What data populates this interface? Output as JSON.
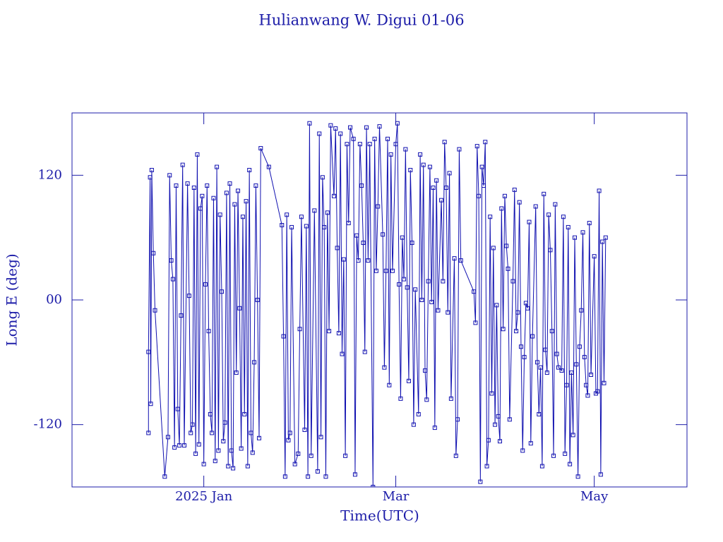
{
  "chart_data": {
    "type": "line",
    "title": "Hulianwang W. Digui 01-06",
    "x_label": "Time(UTC)",
    "y_label": "Long E (deg)",
    "color": "#1010b0",
    "xlim": [
      -40.5,
      148.5
    ],
    "ylim": [
      -180,
      180
    ],
    "xticks": [
      {
        "value": 0,
        "label": "2025 Jan"
      },
      {
        "value": 59,
        "label": "Mar"
      },
      {
        "value": 120,
        "label": "May"
      }
    ],
    "yticks": [
      {
        "value": -120,
        "label": "-120"
      },
      {
        "value": 0,
        "label": "00"
      },
      {
        "value": 120,
        "label": "120"
      }
    ],
    "x": [
      -17,
      -17,
      -16.5,
      -16.3,
      -16,
      -15.5,
      -15,
      -12,
      -11,
      -10.5,
      -10,
      -9.5,
      -9,
      -8.5,
      -8,
      -7.5,
      -7,
      -6.5,
      -6,
      -5,
      -4.5,
      -4,
      -3.5,
      -3,
      -2.5,
      -2,
      -1.5,
      -1,
      -0.5,
      0,
      0.5,
      1,
      1.5,
      2,
      2.5,
      3,
      3.5,
      4,
      4.5,
      5,
      5.5,
      6,
      6.5,
      7,
      7.5,
      8,
      8.5,
      9,
      9.5,
      10,
      10.5,
      11,
      11.5,
      12,
      12.5,
      13,
      13.5,
      14,
      14.5,
      15,
      15.5,
      16,
      16.5,
      17,
      17.5,
      20,
      24,
      24.5,
      25,
      25.5,
      26,
      26.5,
      27,
      28,
      29,
      29.5,
      30,
      31,
      31.5,
      32,
      32.5,
      33,
      34,
      35,
      35.5,
      36,
      36.5,
      37,
      37.5,
      38,
      38.5,
      39,
      40,
      40.5,
      41,
      41.5,
      42,
      42.5,
      43,
      43.5,
      44,
      44.5,
      45,
      46,
      46.5,
      47,
      47.5,
      48,
      48.5,
      49,
      49.5,
      50,
      50.5,
      51,
      52,
      52.5,
      53,
      53.5,
      54,
      55,
      55.5,
      56,
      56.5,
      57,
      57.5,
      58,
      59,
      59.5,
      60,
      60.5,
      61,
      61.5,
      62,
      62.5,
      63,
      63.5,
      64,
      64.5,
      65,
      66,
      66.5,
      67,
      67.5,
      68,
      68.5,
      69,
      69.5,
      70,
      70.5,
      71,
      71.5,
      72,
      73,
      73.5,
      74,
      74.5,
      75,
      75.5,
      76,
      77,
      77.5,
      78,
      78.5,
      79,
      83,
      83.5,
      84,
      84.5,
      85,
      85.5,
      86,
      86.5,
      87,
      87.5,
      88,
      88.5,
      89,
      89.5,
      90,
      90.5,
      91,
      91.5,
      92,
      92.5,
      93,
      93.5,
      94,
      95,
      95.5,
      96,
      96.5,
      97,
      97.5,
      98,
      98.5,
      99,
      99.5,
      100,
      100.5,
      101,
      102,
      102.5,
      103,
      103.5,
      104,
      104.5,
      105,
      105.5,
      106,
      106.5,
      107,
      107.5,
      108,
      108.5,
      109,
      110,
      110.5,
      111,
      111.5,
      112,
      112.5,
      113,
      113.5,
      114,
      114.5,
      115,
      115.5,
      116,
      116.5,
      117,
      117.5,
      118,
      118.5,
      119,
      120,
      120.5,
      121,
      121.5,
      122,
      122.5,
      123,
      123.5
    ],
    "values": [
      -128,
      -50,
      118,
      -100,
      125,
      45,
      -10,
      -170,
      -132,
      120,
      38,
      20,
      -142,
      110,
      -105,
      -140,
      -15,
      130,
      -140,
      112,
      4,
      -128,
      -120,
      108,
      -148,
      140,
      -139,
      88,
      100,
      -158,
      15,
      110,
      -30,
      -110,
      -128,
      98,
      -155,
      128,
      -145,
      82,
      8,
      -136,
      -118,
      103,
      -160,
      112,
      -145,
      -162,
      92,
      -70,
      105,
      -8,
      -143,
      80,
      -110,
      95,
      -160,
      125,
      -128,
      -147,
      -60,
      110,
      0,
      -133,
      146,
      128,
      72,
      -35,
      -170,
      82,
      -135,
      -128,
      70,
      -158,
      -148,
      -28,
      80,
      -125,
      71,
      -170,
      170,
      -150,
      86,
      -165,
      160,
      -132,
      118,
      70,
      -170,
      84,
      -30,
      168,
      100,
      165,
      50,
      -32,
      160,
      -52,
      39,
      -150,
      150,
      74,
      166,
      155,
      -168,
      62,
      38,
      150,
      110,
      55,
      -50,
      166,
      38,
      150,
      -180,
      155,
      28,
      90,
      167,
      63,
      -65,
      28,
      155,
      -82,
      140,
      28,
      150,
      170,
      15,
      -95,
      60,
      20,
      145,
      12,
      -78,
      125,
      55,
      -120,
      10,
      -110,
      140,
      0,
      130,
      -68,
      -96,
      18,
      128,
      -2,
      108,
      -123,
      115,
      -10,
      96,
      18,
      152,
      108,
      -12,
      122,
      -95,
      40,
      -150,
      -115,
      145,
      38,
      8,
      -22,
      148,
      100,
      -175,
      128,
      110,
      152,
      -160,
      -135,
      80,
      -90,
      50,
      -120,
      -5,
      -112,
      -136,
      88,
      -28,
      100,
      52,
      30,
      -115,
      18,
      106,
      -30,
      -12,
      94,
      -45,
      -145,
      -55,
      -3,
      -8,
      75,
      -138,
      -35,
      90,
      -60,
      -110,
      -65,
      -160,
      102,
      -48,
      -70,
      82,
      48,
      -30,
      -150,
      92,
      -52,
      -65,
      -68,
      80,
      -148,
      -82,
      70,
      -158,
      -70,
      -130,
      60,
      -62,
      -170,
      -45,
      -10,
      65,
      -55,
      -82,
      -92,
      74,
      -72,
      42,
      -90,
      -88,
      105,
      -168,
      56,
      -80,
      60
    ]
  }
}
